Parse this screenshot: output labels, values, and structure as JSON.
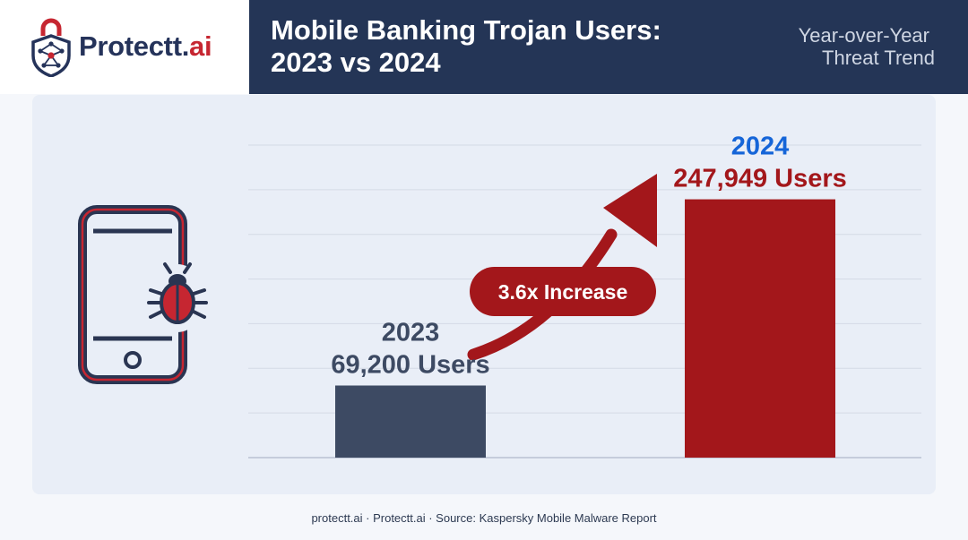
{
  "brand": {
    "name_main": "Protectt.",
    "name_accent": "ai",
    "icon": "shield-network-icon",
    "colors": {
      "navy": "#25335a",
      "red": "#c62631"
    }
  },
  "header": {
    "title_line1": "Mobile Banking Trojan Users:",
    "title_line2": "2023 vs 2024",
    "subtitle_line1": "Year-over-Year",
    "subtitle_line2": "Threat Trend",
    "band_color": "#243556"
  },
  "illustration": {
    "icon": "phone-with-bug-icon"
  },
  "chart_data": {
    "type": "bar",
    "categories": [
      "2023",
      "2024"
    ],
    "values": [
      69200,
      247949
    ],
    "value_labels": [
      "69,200 Users",
      "247,949 Users"
    ],
    "bar_colors": [
      "#3d4a63",
      "#a3171b"
    ],
    "category_label_colors": [
      "#3d4a63",
      "#1565d8"
    ],
    "value_label_colors": [
      "#3d4a63",
      "#a3171b"
    ],
    "annotation": "3.6x Increase",
    "ylim": [
      0,
      300000
    ],
    "grid": true
  },
  "footer": {
    "text": "protectt.ai · Protectt.ai · Source: Kaspersky Mobile Malware Report"
  }
}
